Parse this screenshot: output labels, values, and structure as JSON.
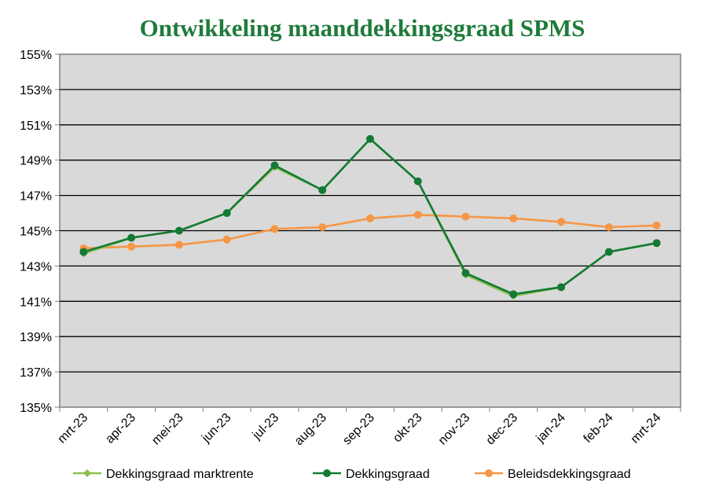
{
  "chart_data": {
    "type": "line",
    "title": "Ontwikkeling maanddekkingsgraad SPMS",
    "xlabel": "",
    "ylabel": "",
    "categories": [
      "mrt-23",
      "apr-23",
      "mei-23",
      "jun-23",
      "jul-23",
      "aug-23",
      "sep-23",
      "okt-23",
      "nov-23",
      "dec-23",
      "jan-24",
      "feb-24",
      "mrt-24"
    ],
    "yticks": [
      "135%",
      "137%",
      "139%",
      "141%",
      "143%",
      "145%",
      "147%",
      "149%",
      "151%",
      "153%",
      "155%"
    ],
    "ylim": [
      135,
      155
    ],
    "grid": true,
    "legend_position": "bottom",
    "plot_background": "#d9d9d9",
    "series": [
      {
        "name": "Dekkingsgraad marktrente",
        "color": "#8cc04f",
        "marker": "diamond",
        "values": [
          143.7,
          144.6,
          145.0,
          146.0,
          148.6,
          147.3,
          150.2,
          147.8,
          142.5,
          141.3,
          141.8,
          143.8,
          144.3
        ]
      },
      {
        "name": "Dekkingsgraad",
        "color": "#137a34",
        "marker": "circle",
        "values": [
          143.8,
          144.6,
          145.0,
          146.0,
          148.7,
          147.3,
          150.2,
          147.8,
          142.6,
          141.4,
          141.8,
          143.8,
          144.3
        ]
      },
      {
        "name": "Beleidsdekkingsgraad",
        "color": "#f79646",
        "marker": "circle",
        "values": [
          144.0,
          144.1,
          144.2,
          144.5,
          145.1,
          145.2,
          145.7,
          145.9,
          145.8,
          145.7,
          145.5,
          145.2,
          145.3
        ]
      }
    ]
  }
}
